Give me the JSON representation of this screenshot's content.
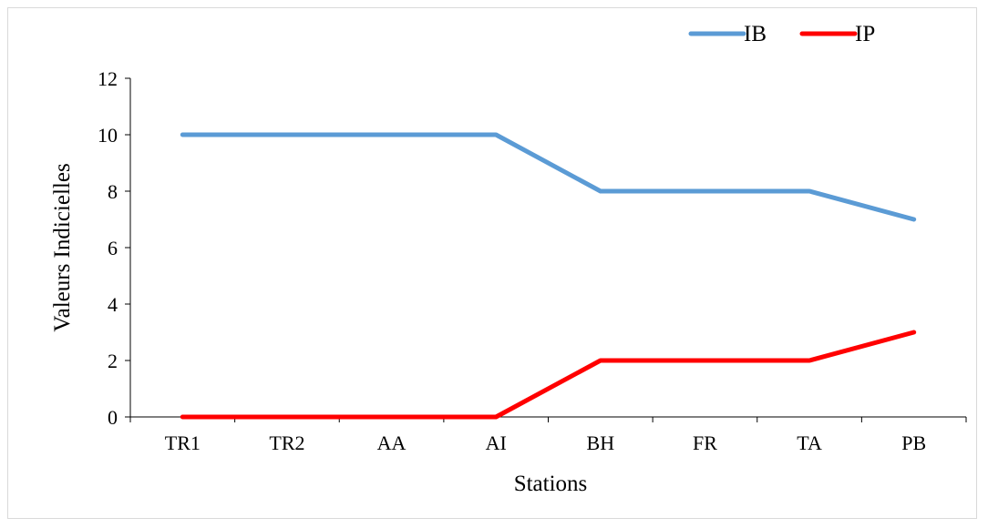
{
  "chart_data": {
    "type": "line",
    "title": "",
    "xlabel": "Stations",
    "ylabel": "Valeurs Indicielles",
    "categories": [
      "TR1",
      "TR2",
      "AA",
      "AI",
      "BH",
      "FR",
      "TA",
      "PB"
    ],
    "ylim": [
      0,
      12
    ],
    "yticks": [
      0,
      2,
      4,
      6,
      8,
      10,
      12
    ],
    "grid": false,
    "legend_position": "top-right",
    "series": [
      {
        "name": "IB",
        "color": "#5b9bd5",
        "values": [
          10,
          10,
          10,
          10,
          8,
          8,
          8,
          7
        ]
      },
      {
        "name": "IP",
        "color": "#ff0000",
        "values": [
          0,
          0,
          0,
          0,
          2,
          2,
          2,
          3
        ]
      }
    ]
  }
}
